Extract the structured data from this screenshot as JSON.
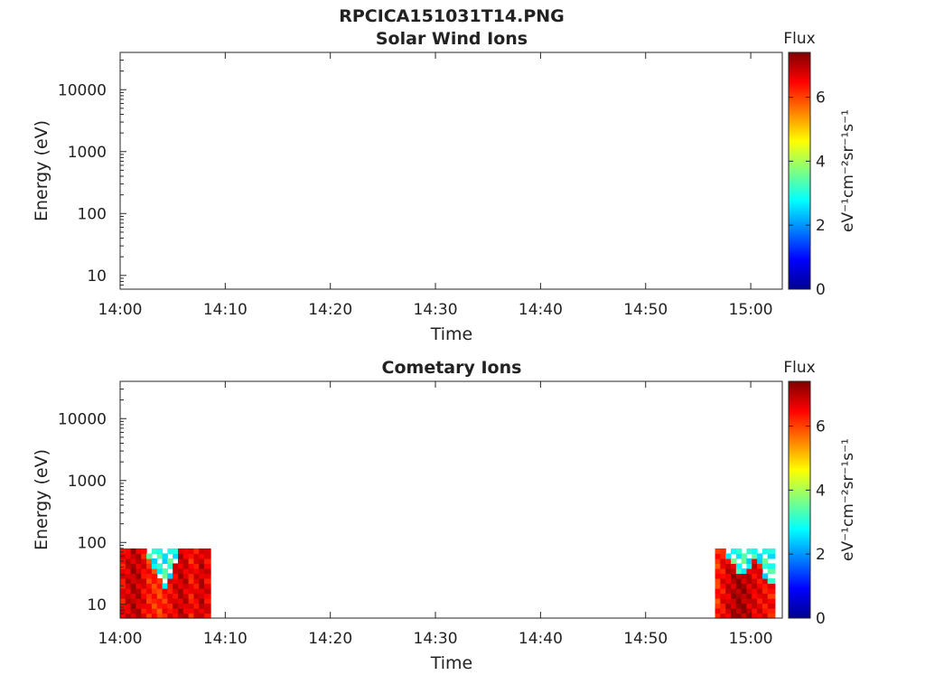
{
  "figure_title": "RPCICA151031T14.PNG",
  "chart_data": [
    {
      "type": "heatmap",
      "title": "Solar Wind Ions",
      "xlabel": "Time",
      "ylabel": "Energy (eV)",
      "x_ticks": [
        "14:00",
        "14:10",
        "14:20",
        "14:30",
        "14:40",
        "14:50",
        "15:00"
      ],
      "xlim": [
        "14:00",
        "15:03"
      ],
      "y_scale": "log",
      "y_ticks": [
        10,
        100,
        1000,
        10000
      ],
      "y_tick_labels": [
        "10",
        "100",
        "1000",
        "10000"
      ],
      "ylim": [
        6,
        40000
      ],
      "colorbar": {
        "title": "Flux",
        "label": "eV⁻¹cm⁻²sr⁻¹s⁻¹",
        "range": [
          0,
          7.4
        ],
        "ticks": [
          0,
          2,
          4,
          6
        ],
        "tick_labels": [
          "0",
          "2",
          "4",
          "6"
        ],
        "colormap": "jet"
      },
      "blocks": []
    },
    {
      "type": "heatmap",
      "title": "Cometary Ions",
      "xlabel": "Time",
      "ylabel": "Energy (eV)",
      "x_ticks": [
        "14:00",
        "14:10",
        "14:20",
        "14:30",
        "14:40",
        "14:50",
        "15:00"
      ],
      "xlim": [
        "14:00",
        "15:03"
      ],
      "y_scale": "log",
      "y_ticks": [
        10,
        100,
        1000,
        10000
      ],
      "y_tick_labels": [
        "10",
        "100",
        "1000",
        "10000"
      ],
      "ylim": [
        6,
        40000
      ],
      "colorbar": {
        "title": "Flux",
        "label": "eV⁻¹cm⁻²sr⁻¹s⁻¹",
        "range": [
          0,
          7.4
        ],
        "ticks": [
          0,
          2,
          4,
          6
        ],
        "tick_labels": [
          "0",
          "2",
          "4",
          "6"
        ],
        "colormap": "jet"
      },
      "blocks": [
        {
          "t_start": "14:00",
          "t_end": "14:08.6",
          "energy_range": [
            6,
            80
          ],
          "columns": [
            {
              "t": "14:00.0",
              "top_energy": 80,
              "flux": 6.5
            },
            {
              "t": "14:00.5",
              "top_energy": 80,
              "flux": 6.8
            },
            {
              "t": "14:01.0",
              "top_energy": 80,
              "flux": 7.0
            },
            {
              "t": "14:01.5",
              "top_energy": 75,
              "flux": 6.9
            },
            {
              "t": "14:02.0",
              "top_energy": 70,
              "flux": 6.6
            },
            {
              "t": "14:02.5",
              "top_energy": 50,
              "flux": 6.3
            },
            {
              "t": "14:03.0",
              "top_energy": 35,
              "flux": 6.2
            },
            {
              "t": "14:03.5",
              "top_energy": 22,
              "flux": 6.1
            },
            {
              "t": "14:04.0",
              "top_energy": 18,
              "flux": 6.3
            },
            {
              "t": "14:04.5",
              "top_energy": 25,
              "flux": 6.5
            },
            {
              "t": "14:05.0",
              "top_energy": 45,
              "flux": 6.7
            },
            {
              "t": "14:05.5",
              "top_energy": 70,
              "flux": 6.9
            },
            {
              "t": "14:06.0",
              "top_energy": 80,
              "flux": 6.8
            },
            {
              "t": "14:06.5",
              "top_energy": 80,
              "flux": 6.4
            },
            {
              "t": "14:07.0",
              "top_energy": 70,
              "flux": 6.6
            },
            {
              "t": "14:07.5",
              "top_energy": 80,
              "flux": 6.9
            },
            {
              "t": "14:08.0",
              "top_energy": 80,
              "flux": 6.6
            }
          ]
        },
        {
          "t_start": "14:56.6",
          "t_end": "15:02.3",
          "energy_range": [
            6,
            80
          ],
          "columns": [
            {
              "t": "14:56.6",
              "top_energy": 80,
              "flux": 6.2
            },
            {
              "t": "14:57.1",
              "top_energy": 70,
              "flux": 6.5
            },
            {
              "t": "14:57.6",
              "top_energy": 50,
              "flux": 6.8
            },
            {
              "t": "14:58.1",
              "top_energy": 40,
              "flux": 7.0
            },
            {
              "t": "14:58.6",
              "top_energy": 30,
              "flux": 7.2
            },
            {
              "t": "14:59.1",
              "top_energy": 28,
              "flux": 7.1
            },
            {
              "t": "14:59.6",
              "top_energy": 35,
              "flux": 6.9
            },
            {
              "t": "15:00.1",
              "top_energy": 55,
              "flux": 6.7
            },
            {
              "t": "15:00.6",
              "top_energy": 40,
              "flux": 6.6
            },
            {
              "t": "15:01.1",
              "top_energy": 25,
              "flux": 6.5
            },
            {
              "t": "15:01.6",
              "top_energy": 20,
              "flux": 6.4
            }
          ]
        }
      ]
    }
  ]
}
